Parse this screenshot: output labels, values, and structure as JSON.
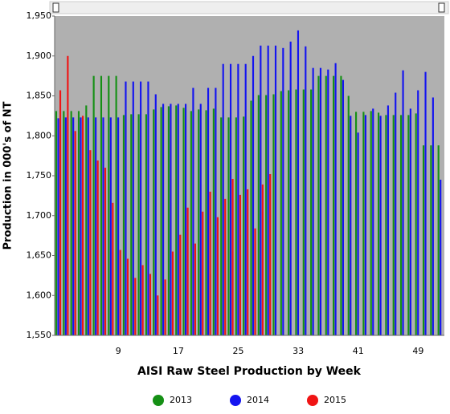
{
  "chart_data": {
    "type": "bar",
    "x_label": "AISI Raw Steel Production by Week",
    "y_label": "Production in 000's of NT",
    "categories": [
      null,
      null,
      null,
      null,
      null,
      null,
      null,
      null,
      "9",
      null,
      null,
      null,
      null,
      null,
      null,
      null,
      "17",
      null,
      null,
      null,
      null,
      null,
      null,
      null,
      "25",
      null,
      null,
      null,
      null,
      null,
      null,
      null,
      "33",
      null,
      null,
      null,
      null,
      null,
      null,
      null,
      "41",
      null,
      null,
      null,
      null,
      null,
      null,
      null,
      "49",
      null,
      null,
      null
    ],
    "series": [
      {
        "name": "2013",
        "color": "#159015",
        "values": [
          1831,
          1831,
          1831,
          1831,
          1838,
          1875,
          1875,
          1875,
          1875,
          1826,
          1827,
          1827,
          1827,
          1833,
          1836,
          1837,
          1838,
          1835,
          1831,
          1833,
          1832,
          1834,
          1823,
          1823,
          1823,
          1824,
          1844,
          1851,
          1851,
          1852,
          1856,
          1857,
          1858,
          1858,
          1858,
          1875,
          1875,
          1875,
          1875,
          1850,
          1830,
          1830,
          1831,
          1829,
          1826,
          1826,
          1826,
          1826,
          1828,
          1788,
          1788,
          1788
        ]
      },
      {
        "name": "2014",
        "color": "#1414f0",
        "values": [
          1822,
          1823,
          1823,
          1823,
          1823,
          1823,
          1823,
          1823,
          1823,
          1868,
          1868,
          1868,
          1868,
          1852,
          1840,
          1840,
          1840,
          1840,
          1860,
          1840,
          1860,
          1860,
          1890,
          1890,
          1890,
          1890,
          1900,
          1913,
          1913,
          1913,
          1910,
          1918,
          1932,
          1912,
          1885,
          1885,
          1883,
          1891,
          1870,
          1825,
          1804,
          1826,
          1834,
          1825,
          1838,
          1854,
          1882,
          1834,
          1857,
          1880,
          1848,
          1745
        ]
      },
      {
        "name": "2015",
        "color": "#f01414",
        "values": [
          1857,
          1900,
          1806,
          1825,
          1782,
          1769,
          1760,
          1716,
          1657,
          1646,
          1622,
          1638,
          1627,
          1600,
          1620,
          1655,
          1676,
          1710,
          1665,
          1705,
          1730,
          1698,
          1721,
          1746,
          1726,
          1733,
          1684,
          1739,
          1752,
          null,
          null,
          null,
          null,
          null,
          null,
          null,
          null,
          null,
          null,
          null,
          null,
          null,
          null,
          null,
          null,
          null,
          null,
          null,
          null,
          null,
          null,
          null
        ]
      }
    ],
    "ylim": [
      1550,
      1950
    ],
    "yticks": [
      {
        "value": 1550,
        "label": "1,550"
      },
      {
        "value": 1600,
        "label": "1,600"
      },
      {
        "value": 1650,
        "label": "1,650"
      },
      {
        "value": 1700,
        "label": "1,700"
      },
      {
        "value": 1750,
        "label": "1,750"
      },
      {
        "value": 1800,
        "label": "1,800"
      },
      {
        "value": 1850,
        "label": "1,850"
      },
      {
        "value": 1900,
        "label": "1,900"
      },
      {
        "value": 1950,
        "label": "1,950"
      }
    ],
    "grid": false,
    "legend": "bottom"
  }
}
